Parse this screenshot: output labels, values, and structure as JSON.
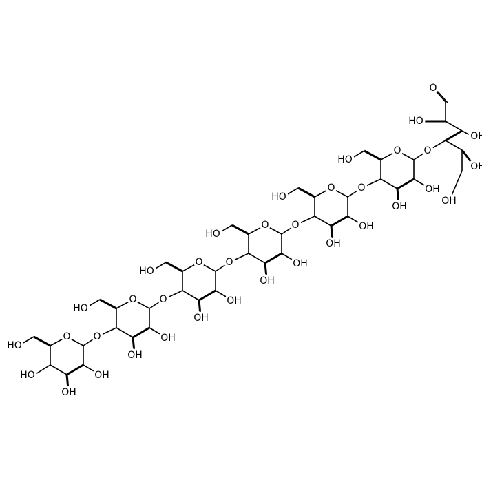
{
  "molecule": {
    "rings": [
      {
        "ring_oxygen": "O",
        "hydroxymethyl": "HO",
        "c2_hydroxyl": "OH",
        "c3_hydroxyl": "OH",
        "glycosidic_oxygen": "O"
      },
      {
        "ring_oxygen": "O",
        "hydroxymethyl": "HO",
        "c2_hydroxyl": "OH",
        "c3_hydroxyl": "OH",
        "glycosidic_oxygen": "O"
      },
      {
        "ring_oxygen": "O",
        "hydroxymethyl": "HO",
        "c2_hydroxyl": "OH",
        "c3_hydroxyl": "OH",
        "glycosidic_oxygen": "O"
      },
      {
        "ring_oxygen": "O",
        "hydroxymethyl": "HO",
        "c2_hydroxyl": "OH",
        "c3_hydroxyl": "OH",
        "glycosidic_oxygen": "O"
      },
      {
        "ring_oxygen": "O",
        "hydroxymethyl": "HO",
        "c2_hydroxyl": "OH",
        "c3_hydroxyl": "OH",
        "glycosidic_oxygen": "O"
      },
      {
        "ring_oxygen": "O",
        "hydroxymethyl": "HO",
        "c2_hydroxyl": "OH",
        "c3_hydroxyl": "OH",
        "glycosidic_oxygen": "O"
      }
    ],
    "terminal_c4_hydroxyl": "HO",
    "open_chain": {
      "aldehyde_oxygen": "O",
      "c2_hydroxyl": "HO",
      "c3_hydroxyl": "OH",
      "c5_hydroxyl": "OH",
      "c6_hydroxyl": "OH"
    }
  }
}
